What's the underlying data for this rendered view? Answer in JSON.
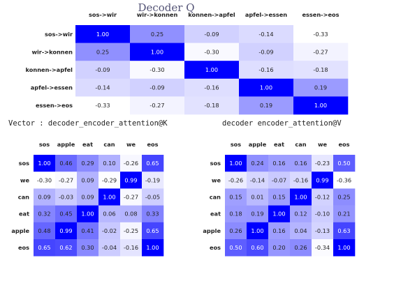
{
  "page": {
    "vector_label_left": "Vector : decoder_encoder_attention@K",
    "vector_label_right": "decoder encoder_attention@V"
  },
  "chart_data": [
    {
      "type": "heatmap",
      "title": "Decoder Q",
      "row_labels": [
        "sos->wir",
        "wir->konnen",
        "konnen->apfel",
        "apfel->essen",
        "essen->eos"
      ],
      "col_labels": [
        "sos->wir",
        "wir->konnen",
        "konnen->apfel",
        "apfel->essen",
        "essen->eos"
      ],
      "values": [
        [
          1.0,
          0.25,
          -0.09,
          -0.14,
          -0.33
        ],
        [
          0.25,
          1.0,
          -0.3,
          -0.09,
          -0.27
        ],
        [
          -0.09,
          -0.3,
          1.0,
          -0.16,
          -0.18
        ],
        [
          -0.14,
          -0.09,
          -0.16,
          1.0,
          0.19
        ],
        [
          -0.33,
          -0.27,
          -0.18,
          0.19,
          1.0
        ]
      ],
      "value_range": [
        -0.33,
        1.0
      ],
      "colormap": {
        "low": "#ffffff",
        "high": "#0000ff"
      }
    },
    {
      "type": "heatmap",
      "title": "",
      "row_labels": [
        "sos",
        "we",
        "can",
        "eat",
        "apple",
        "eos"
      ],
      "col_labels": [
        "sos",
        "apple",
        "eat",
        "can",
        "we",
        "eos"
      ],
      "values": [
        [
          1.0,
          0.46,
          0.29,
          0.1,
          -0.26,
          0.65
        ],
        [
          -0.3,
          -0.27,
          0.09,
          -0.29,
          0.99,
          -0.19
        ],
        [
          0.09,
          -0.03,
          0.09,
          1.0,
          -0.27,
          -0.05
        ],
        [
          0.32,
          0.45,
          1.0,
          0.06,
          0.08,
          0.33
        ],
        [
          0.48,
          0.99,
          0.41,
          -0.02,
          -0.25,
          0.65
        ],
        [
          0.65,
          0.62,
          0.3,
          -0.04,
          -0.16,
          1.0
        ]
      ],
      "value_range": [
        -0.3,
        1.0
      ],
      "colormap": {
        "low": "#ffffff",
        "high": "#0000ff"
      }
    },
    {
      "type": "heatmap",
      "title": "",
      "row_labels": [
        "sos",
        "we",
        "can",
        "eat",
        "apple",
        "eos"
      ],
      "col_labels": [
        "sos",
        "apple",
        "eat",
        "can",
        "we",
        "eos"
      ],
      "values": [
        [
          1.0,
          0.24,
          0.16,
          0.16,
          -0.23,
          0.5
        ],
        [
          -0.26,
          -0.14,
          -0.07,
          -0.16,
          0.99,
          -0.36
        ],
        [
          0.15,
          0.01,
          0.15,
          1.0,
          -0.12,
          0.25
        ],
        [
          0.18,
          0.19,
          1.0,
          0.12,
          -0.1,
          0.21
        ],
        [
          0.26,
          1.0,
          0.16,
          0.04,
          -0.13,
          0.63
        ],
        [
          0.5,
          0.6,
          0.2,
          0.26,
          -0.34,
          1.0
        ]
      ],
      "value_range": [
        -0.36,
        1.0
      ],
      "colormap": {
        "low": "#ffffff",
        "high": "#0000ff"
      }
    }
  ]
}
